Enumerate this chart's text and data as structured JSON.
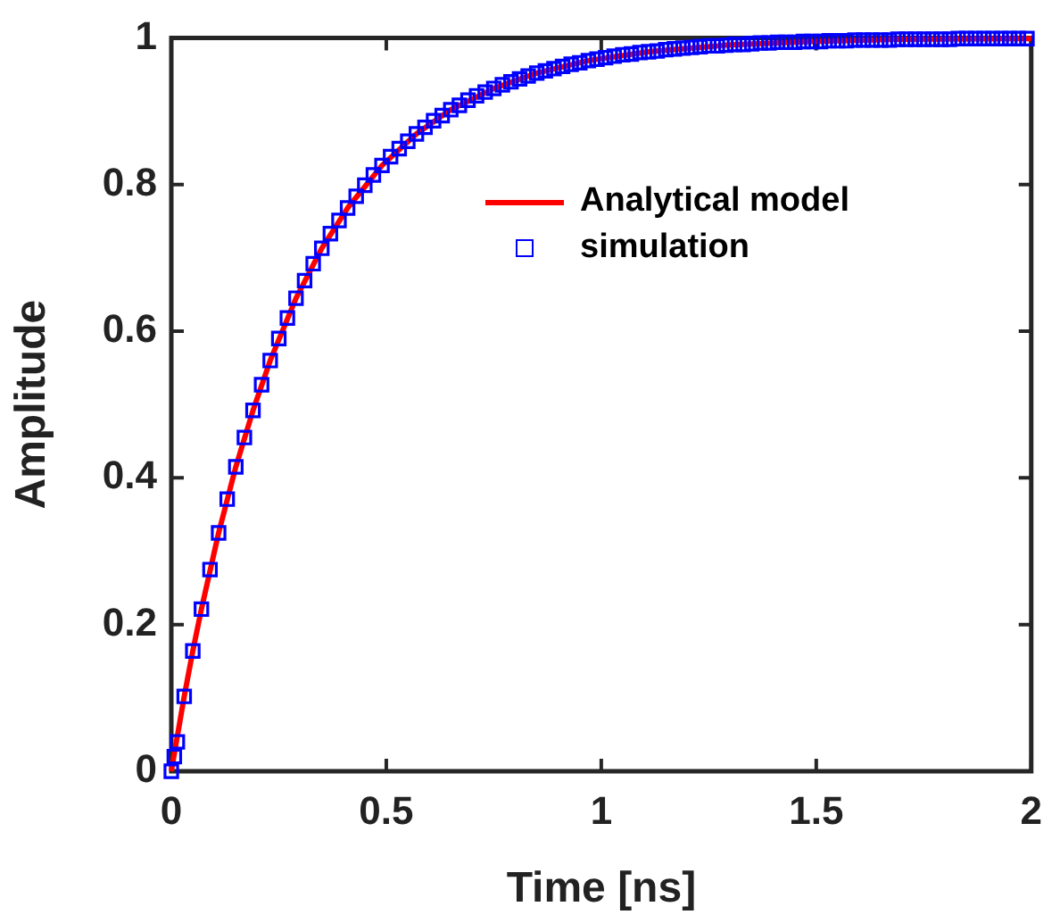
{
  "chart_data": {
    "type": "line",
    "xlabel": "Time [ns]",
    "ylabel": "Amplitude",
    "xlim": [
      0,
      2
    ],
    "ylim": [
      0,
      1
    ],
    "xticks": [
      0,
      0.5,
      1,
      1.5,
      2
    ],
    "yticks": [
      0,
      0.2,
      0.4,
      0.6,
      0.8,
      1
    ],
    "grid": false,
    "legend": "right",
    "series": [
      {
        "name": "Analytical model",
        "color": "#ff0000",
        "marker": "none",
        "line_style": "solid",
        "x": [
          0,
          0.03,
          0.05,
          0.07,
          0.11,
          0.15,
          0.19,
          0.23,
          0.29,
          0.35,
          0.41,
          0.49,
          0.57,
          0.65,
          0.75,
          0.85,
          0.97,
          1.11,
          1.29,
          1.49,
          1.69,
          2
        ],
        "values": [
          0,
          0.102,
          0.164,
          0.221,
          0.325,
          0.415,
          0.492,
          0.56,
          0.645,
          0.713,
          0.768,
          0.826,
          0.869,
          0.902,
          0.931,
          0.952,
          0.969,
          0.981,
          0.99,
          0.995,
          0.998,
          0.999
        ]
      },
      {
        "name": "simulation",
        "type": "scatter",
        "color": "#0000ff",
        "marker": "square",
        "x": [
          0,
          0.007,
          0.014,
          0.03,
          0.05,
          0.07,
          0.09,
          0.11,
          0.13,
          0.15,
          0.17,
          0.19,
          0.21,
          0.23,
          0.25,
          0.27,
          0.29,
          0.31,
          0.33,
          0.35,
          0.37,
          0.39,
          0.41,
          0.43,
          0.45,
          0.47,
          0.49,
          0.51,
          0.53,
          0.55,
          0.57,
          0.59,
          0.61,
          0.63,
          0.65,
          0.67,
          0.69,
          0.71,
          0.73,
          0.75,
          0.77,
          0.79,
          0.81,
          0.83,
          0.85,
          0.87,
          0.89,
          0.91,
          0.93,
          0.95,
          0.97,
          0.99,
          1.01,
          1.03,
          1.05,
          1.07,
          1.09,
          1.11,
          1.13,
          1.15,
          1.17,
          1.19,
          1.21,
          1.23,
          1.25,
          1.27,
          1.29,
          1.31,
          1.33,
          1.35,
          1.37,
          1.39,
          1.41,
          1.43,
          1.45,
          1.47,
          1.49,
          1.51,
          1.53,
          1.55,
          1.57,
          1.59,
          1.61,
          1.63,
          1.65,
          1.67,
          1.69,
          1.71,
          1.73,
          1.75,
          1.77,
          1.79,
          1.81,
          1.83,
          1.85,
          1.87,
          1.89,
          1.91,
          1.93,
          1.95,
          1.97,
          1.99
        ],
        "values": [
          0,
          0.02,
          0.04,
          0.102,
          0.164,
          0.221,
          0.275,
          0.325,
          0.371,
          0.415,
          0.455,
          0.492,
          0.527,
          0.56,
          0.59,
          0.618,
          0.645,
          0.669,
          0.692,
          0.713,
          0.733,
          0.751,
          0.768,
          0.784,
          0.799,
          0.813,
          0.826,
          0.838,
          0.849,
          0.859,
          0.869,
          0.878,
          0.887,
          0.894,
          0.902,
          0.908,
          0.915,
          0.921,
          0.926,
          0.931,
          0.936,
          0.94,
          0.944,
          0.948,
          0.952,
          0.955,
          0.958,
          0.961,
          0.964,
          0.966,
          0.969,
          0.971,
          0.973,
          0.975,
          0.977,
          0.978,
          0.98,
          0.981,
          0.982,
          0.984,
          0.985,
          0.986,
          0.987,
          0.988,
          0.989,
          0.989,
          0.99,
          0.991,
          0.991,
          0.992,
          0.993,
          0.993,
          0.994,
          0.994,
          0.994,
          0.995,
          0.995,
          0.995,
          0.996,
          0.996,
          0.996,
          0.997,
          0.997,
          0.997,
          0.997,
          0.997,
          0.998,
          0.998,
          0.998,
          0.998,
          0.998,
          0.998,
          0.998,
          0.999,
          0.999,
          0.999,
          0.999,
          0.999,
          0.999,
          0.999,
          0.999,
          0.999
        ]
      }
    ]
  }
}
